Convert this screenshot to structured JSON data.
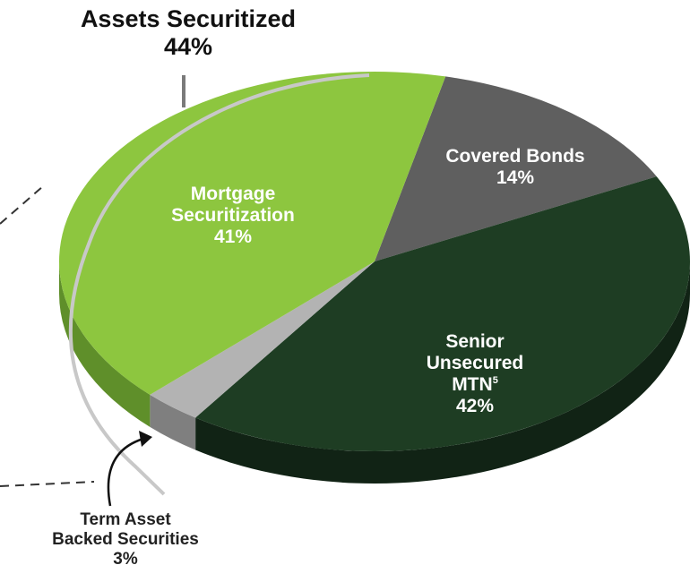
{
  "chart_data": {
    "type": "pie",
    "style": "3d",
    "slices": [
      {
        "key": "mortgage",
        "name": "Mortgage Securitization",
        "value": 41,
        "color": "#8dc63f",
        "side": "#5f8f2a"
      },
      {
        "key": "covered",
        "name": "Covered Bonds",
        "value": 14,
        "color": "#5f5f5f",
        "side": "#3d3d3d"
      },
      {
        "key": "senior",
        "name": "Senior Unsecured MTN",
        "value": 42,
        "color": "#1e3d23",
        "side": "#112315"
      },
      {
        "key": "term",
        "name": "Term Asset Backed Securities",
        "value": 3,
        "color": "#b3b3b3",
        "side": "#7f7f7f"
      }
    ],
    "group_annotation": {
      "label": "Assets Securitized",
      "value": "44%",
      "covers": [
        "Mortgage Securitization",
        "Term Asset Backed Securities"
      ]
    }
  },
  "labels": {
    "group_title": "Assets Securitized",
    "group_pct": "44%",
    "mortgage_l1": "Mortgage",
    "mortgage_l2": "Securitization",
    "mortgage_pct": "41%",
    "covered_l1": "Covered Bonds",
    "covered_pct": "14%",
    "senior_l1": "Senior",
    "senior_l2": "Unsecured",
    "senior_l3": "MTN",
    "senior_note": "5",
    "senior_pct": "42%",
    "term_l1": "Term Asset",
    "term_l2": "Backed Securities",
    "term_pct": "3%"
  }
}
